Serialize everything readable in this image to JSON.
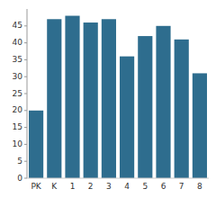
{
  "chart_data": {
    "type": "bar",
    "categories": [
      "PK",
      "K",
      "1",
      "2",
      "3",
      "4",
      "5",
      "6",
      "7",
      "8"
    ],
    "values": [
      20,
      47,
      48,
      46,
      47,
      36,
      42,
      45,
      41,
      31
    ],
    "color": "#2e6d8e",
    "ylim": [
      0,
      50
    ],
    "yticks": [
      0,
      5,
      10,
      15,
      20,
      25,
      30,
      35,
      40,
      45
    ],
    "grid": false
  }
}
